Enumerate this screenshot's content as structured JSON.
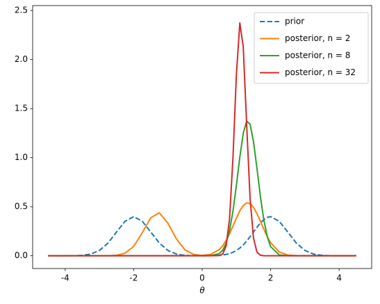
{
  "chart_data": {
    "type": "line",
    "xlabel": "θ",
    "x": [
      -4.5,
      -4.25,
      -4,
      -3.75,
      -3.5,
      -3.25,
      -3,
      -2.75,
      -2.5,
      -2.25,
      -2,
      -1.75,
      -1.5,
      -1.25,
      -1,
      -0.75,
      -0.5,
      -0.25,
      0,
      0.25,
      0.5,
      0.6,
      0.7,
      0.8,
      0.9,
      1,
      1.1,
      1.2,
      1.3,
      1.4,
      1.5,
      1.6,
      1.7,
      1.8,
      1.9,
      2,
      2.25,
      2.5,
      2.75,
      3,
      3.25,
      3.5,
      3.75,
      4,
      4.25,
      4.5
    ],
    "series": [
      {
        "name": "prior",
        "color": "#1f77b4",
        "linestyle": "dashed",
        "values": [
          0,
          0,
          0.0001,
          0.0009,
          0.0044,
          0.0175,
          0.054,
          0.1296,
          0.242,
          0.352,
          0.399,
          0.352,
          0.242,
          0.1296,
          0.054,
          0.0175,
          0.0044,
          0.0009,
          0.0003,
          0.0009,
          0.0044,
          0.0079,
          0.0136,
          0.0224,
          0.0355,
          0.054,
          0.079,
          0.111,
          0.15,
          0.194,
          0.242,
          0.29,
          0.333,
          0.368,
          0.391,
          0.399,
          0.352,
          0.242,
          0.1296,
          0.054,
          0.0175,
          0.0044,
          0.0009,
          0.0001,
          0,
          0
        ]
      },
      {
        "name": "posterior, n = 2",
        "color": "#ff7f0e",
        "linestyle": "solid",
        "values": [
          0,
          0,
          0,
          0,
          0,
          0,
          0.0001,
          0.0006,
          0.0049,
          0.0262,
          0.095,
          0.234,
          0.388,
          0.437,
          0.332,
          0.171,
          0.0595,
          0.014,
          0.0043,
          0.0143,
          0.063,
          0.102,
          0.156,
          0.224,
          0.303,
          0.384,
          0.458,
          0.512,
          0.539,
          0.532,
          0.493,
          0.43,
          0.352,
          0.271,
          0.196,
          0.133,
          0.0383,
          0.0075,
          0.001,
          0.0001,
          0,
          0,
          0,
          0,
          0,
          0
        ]
      },
      {
        "name": "posterior, n = 8",
        "color": "#2ca02c",
        "linestyle": "solid",
        "values": [
          0,
          0,
          0,
          0,
          0,
          0,
          0,
          0,
          0,
          0,
          0,
          0,
          0,
          0,
          0,
          0,
          0,
          0,
          0,
          0.0013,
          0.022,
          0.056,
          0.128,
          0.256,
          0.455,
          0.718,
          1.005,
          1.247,
          1.373,
          1.34,
          1.161,
          0.891,
          0.607,
          0.367,
          0.197,
          0.093,
          0.0086,
          0.0004,
          0,
          0,
          0,
          0,
          0,
          0,
          0,
          0
        ]
      },
      {
        "name": "posterior, n = 32",
        "color": "#d62728",
        "linestyle": "solid",
        "values": [
          0,
          0,
          0,
          0,
          0,
          0,
          0,
          0,
          0,
          0,
          0,
          0,
          0,
          0,
          0,
          0,
          0,
          0,
          0,
          0,
          0.0024,
          0.0184,
          0.1,
          0.378,
          1.0,
          1.845,
          2.373,
          2.13,
          1.334,
          0.583,
          0.178,
          0.038,
          0.0056,
          0.0006,
          0,
          0,
          0,
          0,
          0,
          0,
          0,
          0,
          0,
          0,
          0,
          0
        ]
      }
    ],
    "xlim": [
      -4.95,
      4.95
    ],
    "ylim": [
      -0.13,
      2.55
    ],
    "xticks": [
      -4,
      -2,
      0,
      2,
      4
    ],
    "yticks": [
      {
        "value": 0,
        "label": "0.0"
      },
      0.5,
      {
        "value": 1,
        "label": "1.0"
      },
      1.5,
      {
        "value": 2,
        "label": "2.0"
      },
      2.5
    ],
    "grid": false,
    "legend": "upper right"
  }
}
